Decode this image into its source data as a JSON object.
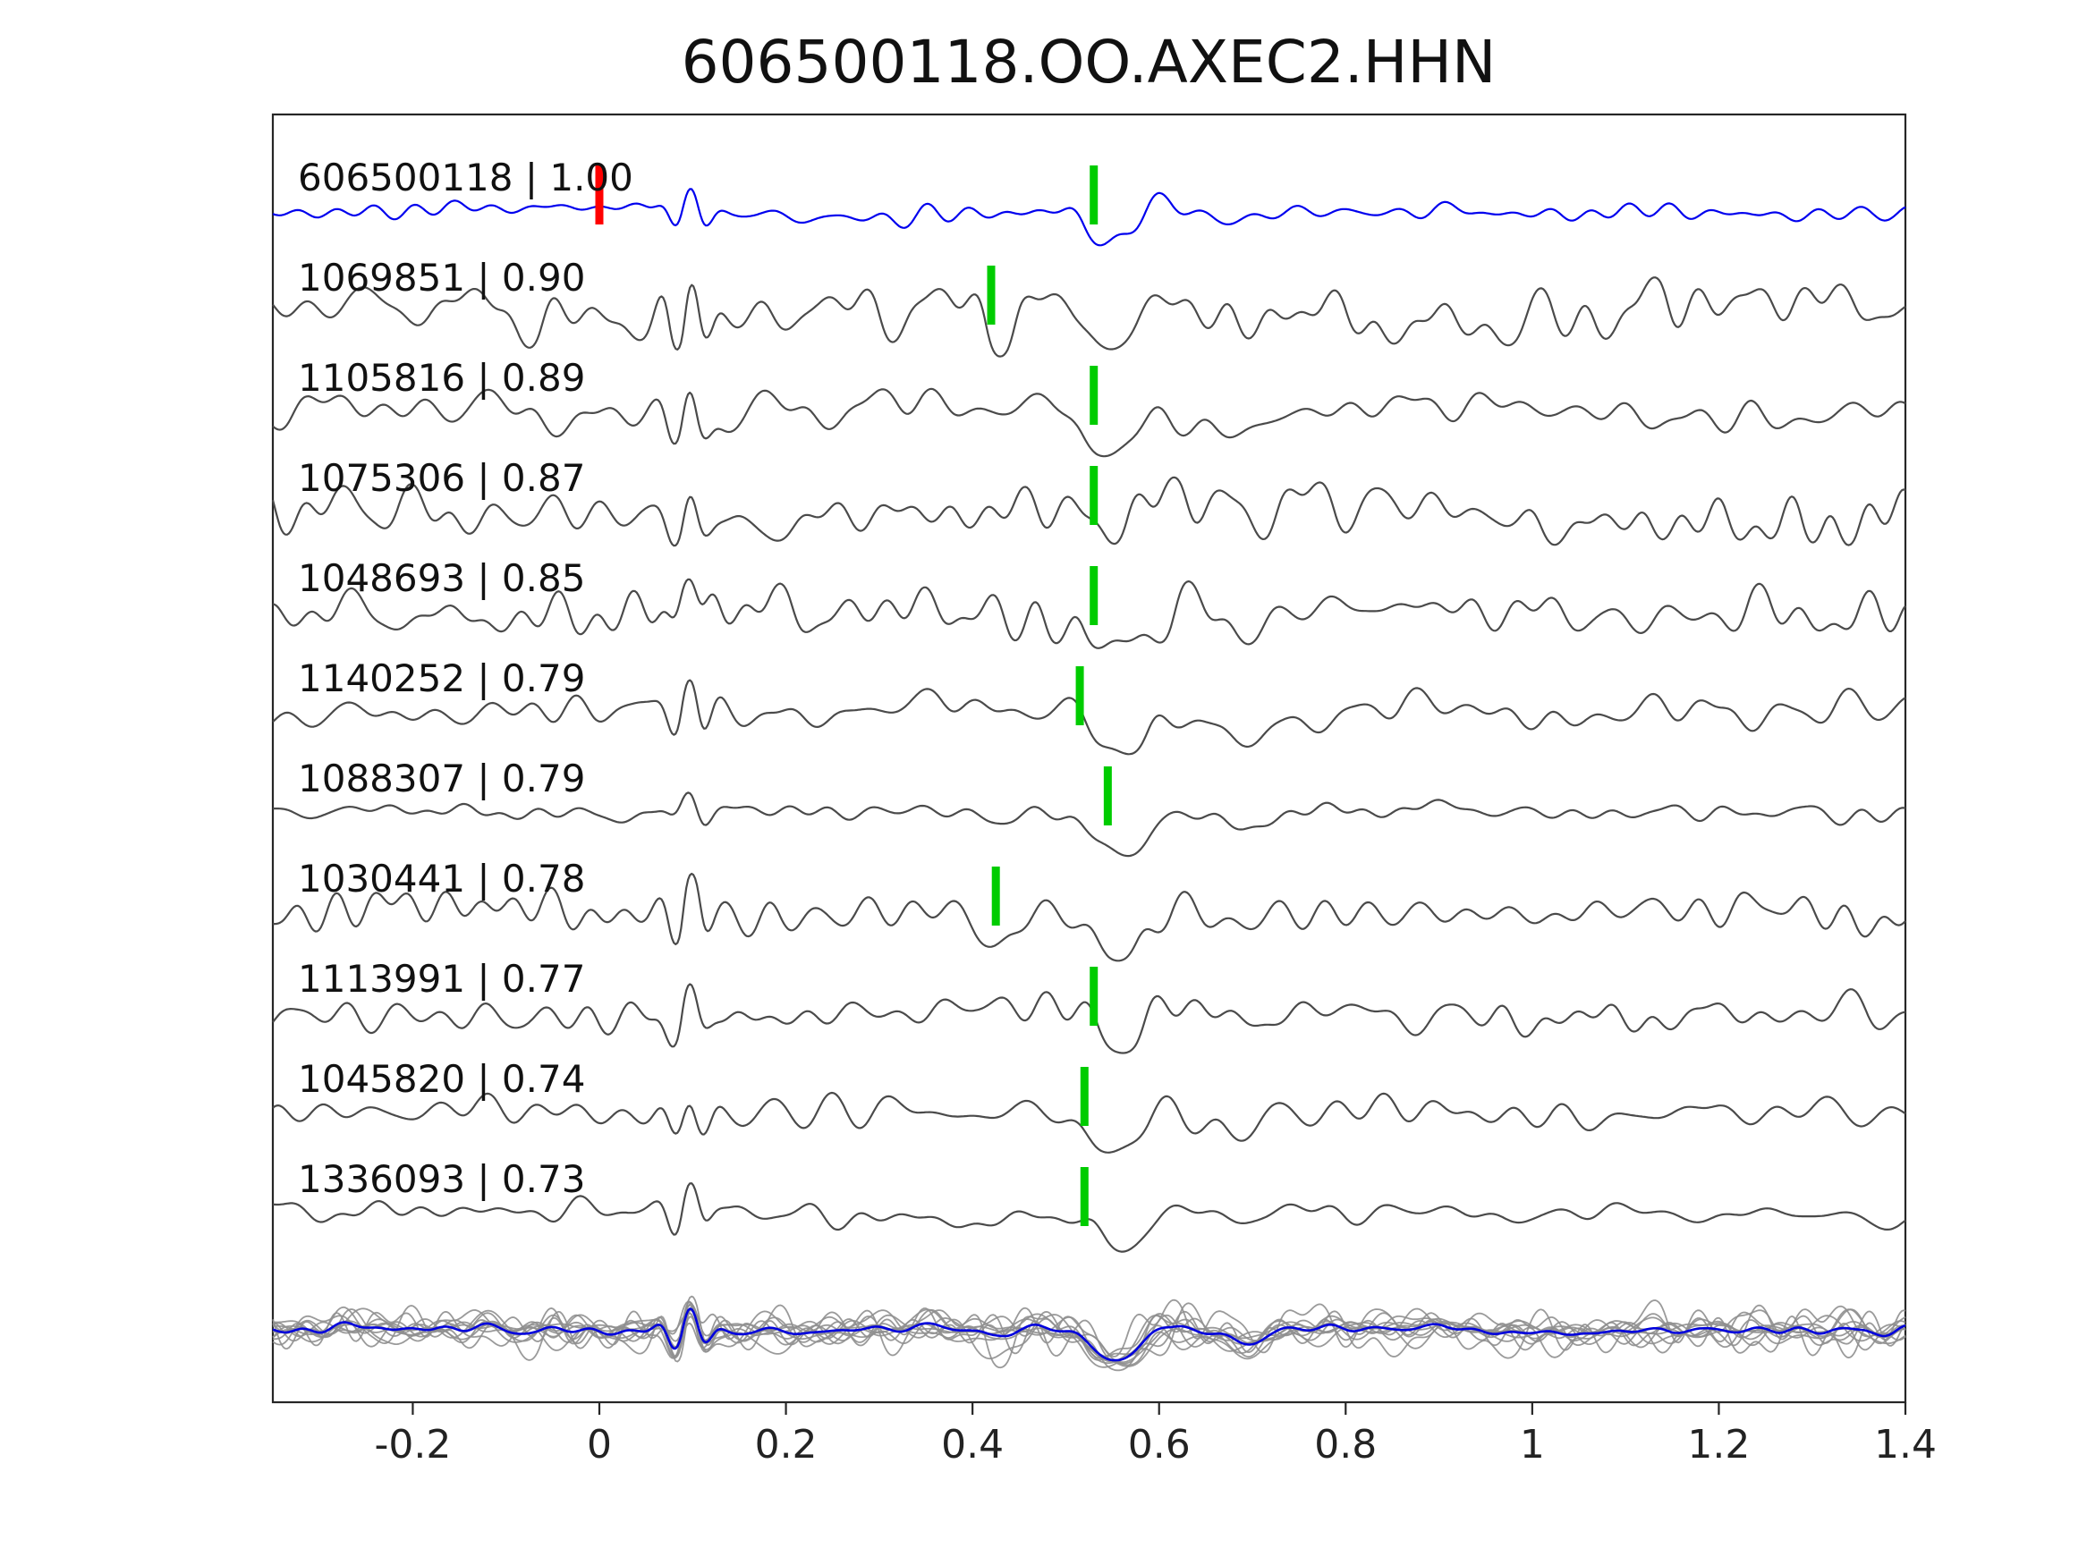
{
  "chart_data": {
    "type": "line",
    "title": "606500118.OO.AXEC2.HHN",
    "xlim": [
      -0.35,
      1.4
    ],
    "x_ticks": [
      -0.2,
      0,
      0.2,
      0.4,
      0.6,
      0.8,
      1,
      1.2,
      1.4
    ],
    "x_tick_labels": [
      "-0.2",
      "0",
      "0.2",
      "0.4",
      "0.6",
      "0.8",
      "1",
      "1.2",
      "1.4"
    ],
    "grid": false,
    "legend": "none",
    "colors": {
      "blue_trace": "#0000ee",
      "gray_trace": "#4a4a4a",
      "red_pick": "#ff0000",
      "green_pick": "#00cc00",
      "overlay_member": "#8f8f8f",
      "overlay_stack": "#0000dd",
      "frame": "#262626",
      "text": "#111111"
    },
    "traces": [
      {
        "id": "606500118",
        "correlation": "1.00",
        "label": "606500118 | 1.00",
        "line": "blue",
        "picks": [
          {
            "time": 0.0,
            "color": "red"
          },
          {
            "time": 0.53,
            "color": "green"
          }
        ],
        "render": {
          "noise": 0.3,
          "early": 0.75,
          "main": 1.05,
          "dip": 0
        }
      },
      {
        "id": "1069851",
        "correlation": "0.90",
        "label": "1069851 | 0.90",
        "line": "gray",
        "picks": [
          {
            "time": 0.42,
            "color": "green"
          }
        ],
        "render": {
          "noise": 0.75,
          "early": 1.5,
          "main": 1.3,
          "dip": 1.1
        }
      },
      {
        "id": "1105816",
        "correlation": "0.89",
        "label": "1105816 | 0.89",
        "line": "gray",
        "picks": [
          {
            "time": 0.53,
            "color": "green"
          }
        ],
        "render": {
          "noise": 0.7,
          "early": 1.0,
          "main": 1.25,
          "dip": 0
        }
      },
      {
        "id": "1075306",
        "correlation": "0.87",
        "label": "1075306 | 0.87",
        "line": "gray",
        "picks": [
          {
            "time": 0.53,
            "color": "green"
          }
        ],
        "render": {
          "noise": 0.95,
          "early": 0.85,
          "main": 1.1,
          "dip": 0
        }
      },
      {
        "id": "1048693",
        "correlation": "0.85",
        "label": "1048693 | 0.85",
        "line": "gray",
        "picks": [
          {
            "time": 0.53,
            "color": "green"
          }
        ],
        "render": {
          "noise": 0.85,
          "early": 1.05,
          "main": 1.35,
          "dip": 0
        }
      },
      {
        "id": "1140252",
        "correlation": "0.79",
        "label": "1140252 | 0.79",
        "line": "gray",
        "picks": [
          {
            "time": 0.515,
            "color": "green"
          }
        ],
        "render": {
          "noise": 0.6,
          "early": 1.1,
          "main": 1.5,
          "dip": 0
        }
      },
      {
        "id": "1088307",
        "correlation": "0.79",
        "label": "1088307 | 0.79",
        "line": "gray",
        "picks": [
          {
            "time": 0.545,
            "color": "green"
          }
        ],
        "render": {
          "noise": 0.32,
          "early": 0.45,
          "main": 1.45,
          "dip": 0
        }
      },
      {
        "id": "1030441",
        "correlation": "0.78",
        "label": "1030441 | 0.78",
        "line": "gray",
        "picks": [
          {
            "time": 0.425,
            "color": "green"
          }
        ],
        "render": {
          "noise": 0.65,
          "early": 1.25,
          "main": 1.7,
          "dip": 1.2
        }
      },
      {
        "id": "1113991",
        "correlation": "0.77",
        "label": "1113991 | 0.77",
        "line": "gray",
        "picks": [
          {
            "time": 0.53,
            "color": "green"
          }
        ],
        "render": {
          "noise": 0.6,
          "early": 0.95,
          "main": 1.5,
          "dip": 0
        }
      },
      {
        "id": "1045820",
        "correlation": "0.74",
        "label": "1045820 | 0.74",
        "line": "gray",
        "picks": [
          {
            "time": 0.52,
            "color": "green"
          }
        ],
        "render": {
          "noise": 0.5,
          "early": 0.8,
          "main": 1.4,
          "dip": 0
        }
      },
      {
        "id": "1336093",
        "correlation": "0.73",
        "label": "1336093 | 0.73",
        "line": "gray",
        "picks": [
          {
            "time": 0.52,
            "color": "green"
          }
        ],
        "render": {
          "noise": 0.45,
          "early": 0.85,
          "main": 1.25,
          "dip": 0
        }
      }
    ],
    "overlay_row": {
      "member_color": "#8f8f8f",
      "stack_color": "#0000dd"
    }
  }
}
